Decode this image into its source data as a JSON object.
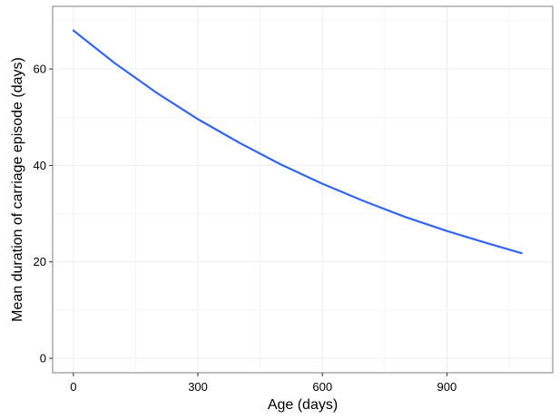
{
  "chart_data": {
    "type": "line",
    "title": "",
    "xlabel": "Age (days)",
    "ylabel": "Mean duration of carriage episode (days)",
    "xlim": [
      -50,
      1155
    ],
    "ylim": [
      -3,
      73
    ],
    "xticks": [
      0,
      300,
      600,
      900
    ],
    "yticks": [
      0,
      20,
      40,
      60
    ],
    "x_tick_labels": [
      "0",
      "300",
      "600",
      "900"
    ],
    "y_tick_labels": [
      "0",
      "20",
      "40",
      "60"
    ],
    "grid": true,
    "legend": "none",
    "series": [
      {
        "color": "#3366EE",
        "x": [
          0,
          100,
          200,
          300,
          400,
          500,
          600,
          700,
          800,
          900,
          1000,
          1080
        ],
        "y": [
          68.0,
          61.2,
          55.1,
          49.6,
          44.7,
          40.2,
          36.2,
          32.6,
          29.3,
          26.4,
          23.8,
          21.8
        ]
      }
    ]
  },
  "colors": {
    "line": "#3366EE",
    "panel_border": "#7f7f7f",
    "grid": "#ebebeb",
    "background": "#ffffff"
  }
}
